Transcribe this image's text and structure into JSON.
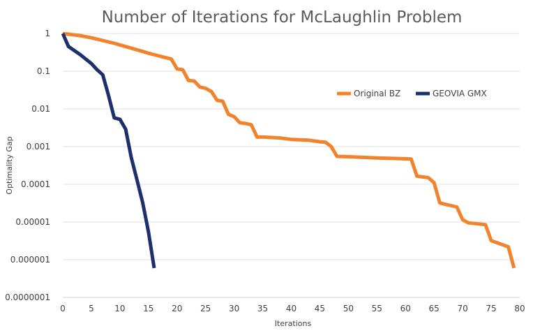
{
  "chart_data": {
    "type": "line",
    "title": "Number of Iterations for McLaughlin Problem",
    "xlabel": "Iterations",
    "ylabel": "Optimality Gap",
    "x_ticks": [
      0,
      5,
      10,
      15,
      20,
      25,
      30,
      35,
      40,
      45,
      50,
      55,
      60,
      65,
      70,
      75,
      80
    ],
    "y_scale": "log",
    "y_ticks": [
      {
        "value": 1,
        "label": "1"
      },
      {
        "value": 0.1,
        "label": "0.1"
      },
      {
        "value": 0.01,
        "label": "0.01"
      },
      {
        "value": 0.001,
        "label": "0.001"
      },
      {
        "value": 0.0001,
        "label": "0.0001"
      },
      {
        "value": 1e-05,
        "label": "0.00001"
      },
      {
        "value": 1e-06,
        "label": "0.000001"
      },
      {
        "value": 1e-07,
        "label": "0.0000001"
      }
    ],
    "xlim": [
      0,
      80
    ],
    "ylim": [
      1e-07,
      1
    ],
    "grid": true,
    "legend_position": "right",
    "series": [
      {
        "name": "Original BZ",
        "color": "#f0832c",
        "points": [
          [
            0,
            1
          ],
          [
            1,
            0.96
          ],
          [
            3,
            0.88
          ],
          [
            5,
            0.77
          ],
          [
            7,
            0.65
          ],
          [
            9,
            0.55
          ],
          [
            11,
            0.45
          ],
          [
            13,
            0.37
          ],
          [
            15,
            0.3
          ],
          [
            17,
            0.25
          ],
          [
            19,
            0.21
          ],
          [
            20,
            0.115
          ],
          [
            21,
            0.11
          ],
          [
            22,
            0.057
          ],
          [
            23,
            0.055
          ],
          [
            24,
            0.038
          ],
          [
            25,
            0.035
          ],
          [
            26,
            0.029
          ],
          [
            27,
            0.017
          ],
          [
            28,
            0.016
          ],
          [
            29,
            0.0072
          ],
          [
            30,
            0.0062
          ],
          [
            31,
            0.0043
          ],
          [
            32,
            0.0041
          ],
          [
            33,
            0.0038
          ],
          [
            34,
            0.0018
          ],
          [
            35,
            0.0018
          ],
          [
            38,
            0.0017
          ],
          [
            40,
            0.00155
          ],
          [
            43,
            0.00148
          ],
          [
            45,
            0.00135
          ],
          [
            46,
            0.0013
          ],
          [
            47,
            0.001
          ],
          [
            48,
            0.00055
          ],
          [
            50,
            0.00054
          ],
          [
            55,
            0.0005
          ],
          [
            61,
            0.00047
          ],
          [
            62,
            0.000165
          ],
          [
            64,
            0.00015
          ],
          [
            65,
            0.00011
          ],
          [
            66,
            3.2e-05
          ],
          [
            69,
            2.5e-05
          ],
          [
            70,
            1.15e-05
          ],
          [
            71,
            9.5e-06
          ],
          [
            74,
            8.5e-06
          ],
          [
            75,
            3.2e-06
          ],
          [
            78,
            2.2e-06
          ],
          [
            79,
            6e-07
          ]
        ]
      },
      {
        "name": "GEOVIA GMX",
        "color": "#1e2f6e",
        "points": [
          [
            0,
            1
          ],
          [
            1,
            0.45
          ],
          [
            3,
            0.28
          ],
          [
            5,
            0.16
          ],
          [
            6,
            0.11
          ],
          [
            7,
            0.08
          ],
          [
            8,
            0.023
          ],
          [
            9,
            0.0058
          ],
          [
            10,
            0.0053
          ],
          [
            11,
            0.0029
          ],
          [
            12,
            0.0005
          ],
          [
            13,
            0.00013
          ],
          [
            14,
            3.2e-05
          ],
          [
            15,
            5.5e-06
          ],
          [
            16,
            6e-07
          ]
        ]
      }
    ]
  }
}
